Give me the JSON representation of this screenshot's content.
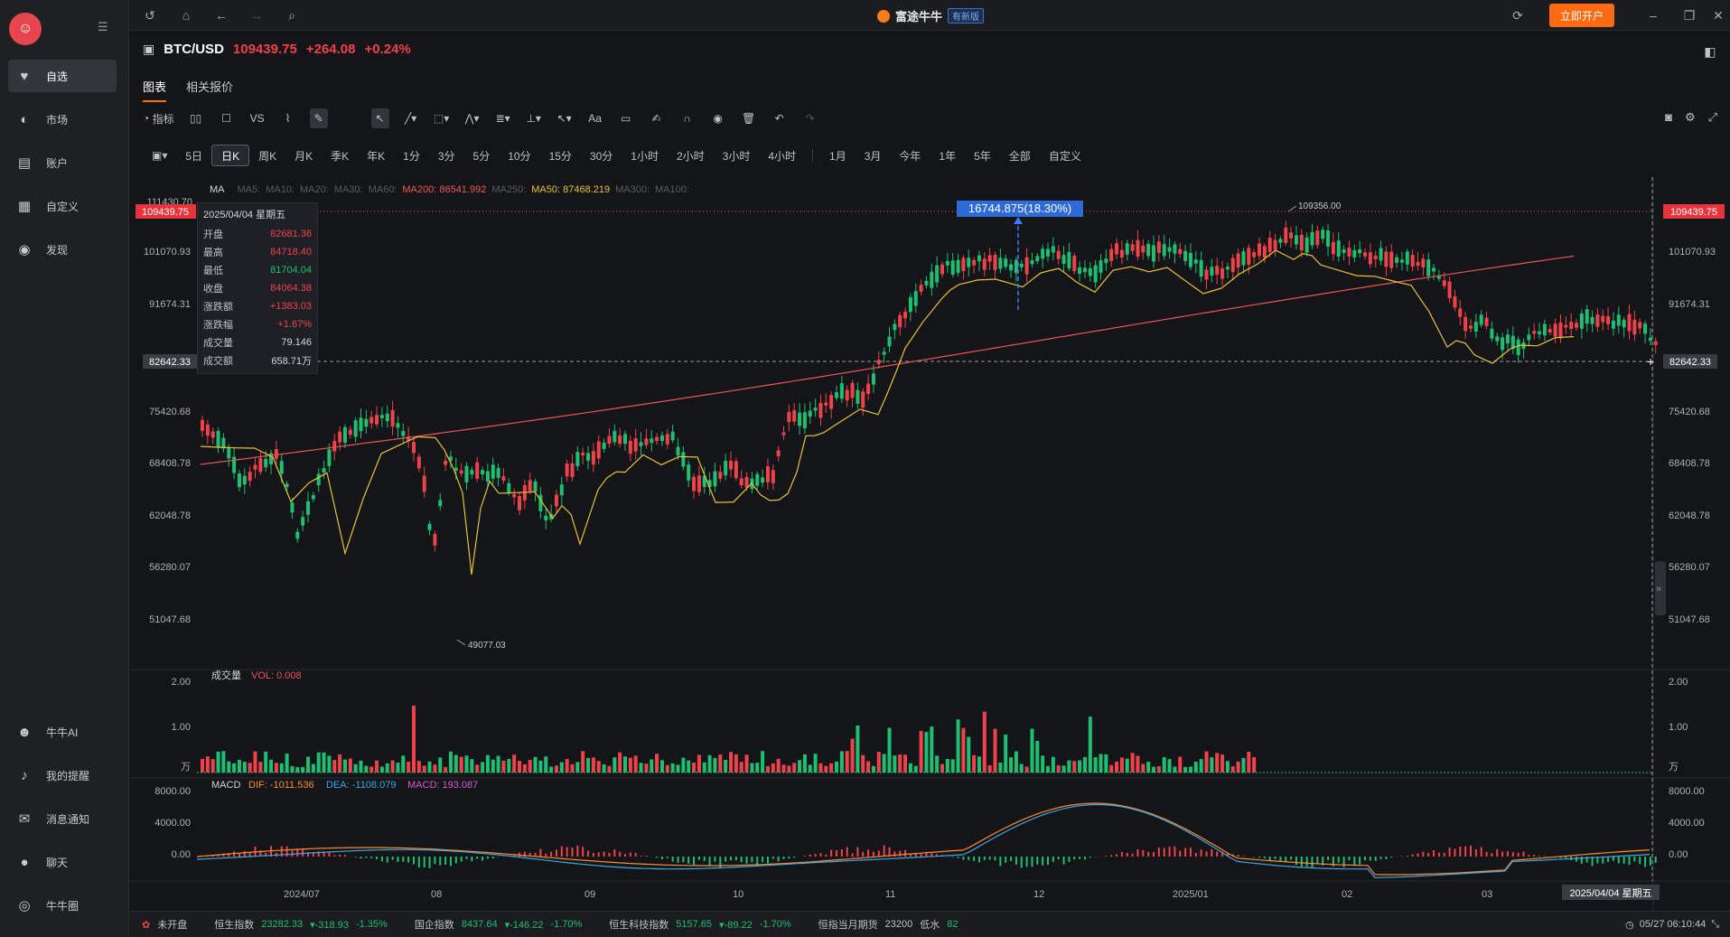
{
  "sidebar": {
    "items": [
      {
        "label": "自选",
        "icon": "heart-icon"
      },
      {
        "label": "市场",
        "icon": "planet-icon"
      },
      {
        "label": "账户",
        "icon": "wallet-icon"
      },
      {
        "label": "自定义",
        "icon": "layout-icon"
      },
      {
        "label": "发现",
        "icon": "compass-icon"
      }
    ],
    "bottom_items": [
      {
        "label": "牛牛AI",
        "icon": "robot-icon"
      },
      {
        "label": "我的提醒",
        "icon": "bell-icon"
      },
      {
        "label": "消息通知",
        "icon": "mail-icon"
      },
      {
        "label": "聊天",
        "icon": "chat-icon"
      },
      {
        "label": "牛牛圈",
        "icon": "circle-icon"
      }
    ]
  },
  "titlebar": {
    "brand": "富途牛牛",
    "badge": "有新版",
    "open_account": "立即开户"
  },
  "symbol": {
    "name": "BTC/USD",
    "price": "109439.75",
    "change": "+264.08",
    "change_pct": "+0.24%"
  },
  "tabs": [
    "图表",
    "相关报价"
  ],
  "toolbar": {
    "indicator_label": "指标",
    "vs_label": "VS",
    "text_tool": "Aa"
  },
  "periods": {
    "group1": [
      "5日",
      "日K",
      "周K",
      "月K",
      "季K",
      "年K",
      "1分",
      "3分",
      "5分",
      "10分",
      "15分",
      "30分",
      "1小时",
      "2小时",
      "3小时",
      "4小时"
    ],
    "group2": [
      "1月",
      "3月",
      "今年",
      "1年",
      "5年",
      "全部",
      "自定义"
    ],
    "active": "日K"
  },
  "ma_legend": [
    {
      "label": "MA",
      "color": "#d5d6da"
    },
    {
      "label": "MA5:",
      "color": "#5a5b60"
    },
    {
      "label": "MA10:",
      "color": "#5a5b60"
    },
    {
      "label": "MA20:",
      "color": "#5a5b60"
    },
    {
      "label": "MA30:",
      "color": "#5a5b60"
    },
    {
      "label": "MA60:",
      "color": "#5a5b60"
    },
    {
      "label": "MA200: 86541.992",
      "color": "#f05a5a"
    },
    {
      "label": "MA250:",
      "color": "#5a5b60"
    },
    {
      "label": "MA50: 87468.219",
      "color": "#e8c23a"
    },
    {
      "label": "MA300:",
      "color": "#5a5b60"
    },
    {
      "label": "MA100:",
      "color": "#5a5b60"
    }
  ],
  "ohlc": {
    "date": "2025/04/04 星期五",
    "rows": [
      {
        "k": "开盘",
        "v": "82681.36",
        "c": "#f0424b"
      },
      {
        "k": "最高",
        "v": "84718.40",
        "c": "#f0424b"
      },
      {
        "k": "最低",
        "v": "81704.04",
        "c": "#1fbf73"
      },
      {
        "k": "收盘",
        "v": "84064.38",
        "c": "#f0424b"
      },
      {
        "k": "涨跌额",
        "v": "+1383.03",
        "c": "#f0424b"
      },
      {
        "k": "涨跌幅",
        "v": "+1.67%",
        "c": "#f0424b"
      },
      {
        "k": "成交量",
        "v": "79.146",
        "c": "#d5d6da"
      },
      {
        "k": "成交额",
        "v": "658.71万",
        "c": "#d5d6da"
      }
    ]
  },
  "chart_data": {
    "type": "candlestick",
    "y_ticks": [
      "111430.70",
      "101070.93",
      "91674.31",
      "75420.68",
      "68408.78",
      "62048.78",
      "56280.07",
      "51047.68"
    ],
    "price_label_top": "109439.75",
    "price_label_cursor": "82642.33",
    "measure_label": "16744.875(18.30%)",
    "high_marker": "109356.00",
    "low_marker": "49077.03",
    "x_ticks": [
      "2024/07",
      "08",
      "09",
      "10",
      "11",
      "12",
      "2025/01",
      "02",
      "03"
    ],
    "cursor_date": "2025/04/04 星期五",
    "volume": {
      "title": "成交量",
      "label": "VOL: 0.008",
      "ticks": [
        "2.00",
        "1.00",
        "万"
      ]
    },
    "macd": {
      "title": "MACD",
      "dif": "DIF: -1011.536",
      "dea": "DEA: -1108.079",
      "macd": "MACD: 193.087",
      "ticks": [
        "8000.00",
        "4000.00",
        "0.00"
      ]
    }
  },
  "statusbar": {
    "market_state": "未开盘",
    "indices": [
      {
        "name": "恒生指数",
        "value": "23282.33",
        "chg": "-318.93",
        "pct": "-1.35%"
      },
      {
        "name": "国企指数",
        "value": "8437.64",
        "chg": "-146.22",
        "pct": "-1.70%"
      },
      {
        "name": "恒生科技指数",
        "value": "5157.65",
        "chg": "-89.22",
        "pct": "-1.70%"
      }
    ],
    "futures_label": "恒指当月期货",
    "futures_value": "23200",
    "water_label": "低水",
    "water_value": "82",
    "time": "05/27 06:10:44"
  }
}
